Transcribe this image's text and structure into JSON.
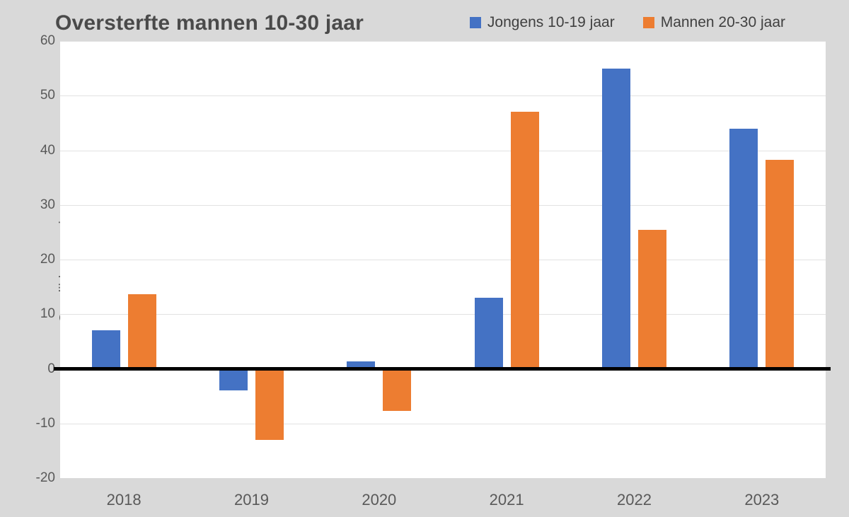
{
  "title": "Oversterfte mannen 10-30 jaar",
  "chart_data": {
    "type": "bar",
    "categories": [
      "2018",
      "2019",
      "2020",
      "2021",
      "2022",
      "2023"
    ],
    "series": [
      {
        "name": "Jongens 10-19 jaar",
        "color": "#4472C4",
        "values": [
          7,
          -4,
          1.4,
          13,
          55,
          44
        ]
      },
      {
        "name": "Mannen 20-30 jaar",
        "color": "#ED7D31",
        "values": [
          13.7,
          -13,
          -7.7,
          47,
          25.5,
          38.3
        ]
      }
    ],
    "title": "Oversterfte mannen 10-30 jaar",
    "xlabel": "",
    "ylabel": "Overlijdens per jaar",
    "ylim": [
      -20,
      60
    ],
    "yticks": [
      60,
      50,
      40,
      30,
      20,
      10,
      0,
      -10,
      -20
    ],
    "grid": true,
    "legend_position": "top-right",
    "plot_background": "#ffffff",
    "canvas_background": "#d9d9d9",
    "zero_line_color": "#000000"
  }
}
